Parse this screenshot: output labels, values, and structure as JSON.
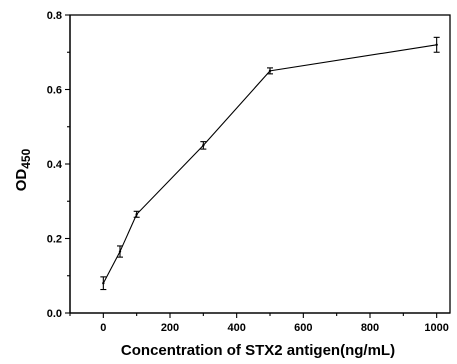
{
  "chart_data": {
    "type": "line",
    "xlabel": "Concentration of STX2 antigen(ng/mL)",
    "ylabel_main": "OD",
    "ylabel_sub": "450",
    "xlim": [
      -100,
      1040
    ],
    "ylim": [
      0,
      0.8
    ],
    "x_ticks": [
      0,
      200,
      400,
      600,
      800,
      1000
    ],
    "y_ticks": [
      0.0,
      0.2,
      0.4,
      0.6,
      0.8
    ],
    "x_tick_labels": [
      "0",
      "200",
      "400",
      "600",
      "800",
      "1000"
    ],
    "y_tick_labels": [
      "0.0",
      "0.2",
      "0.4",
      "0.6",
      "0.8"
    ],
    "grid": false,
    "series": [
      {
        "x": [
          0,
          50,
          100,
          300,
          500,
          1000
        ],
        "y": [
          0.08,
          0.165,
          0.265,
          0.45,
          0.65,
          0.72
        ],
        "err": [
          0.017,
          0.015,
          0.008,
          0.01,
          0.008,
          0.02
        ]
      }
    ]
  }
}
